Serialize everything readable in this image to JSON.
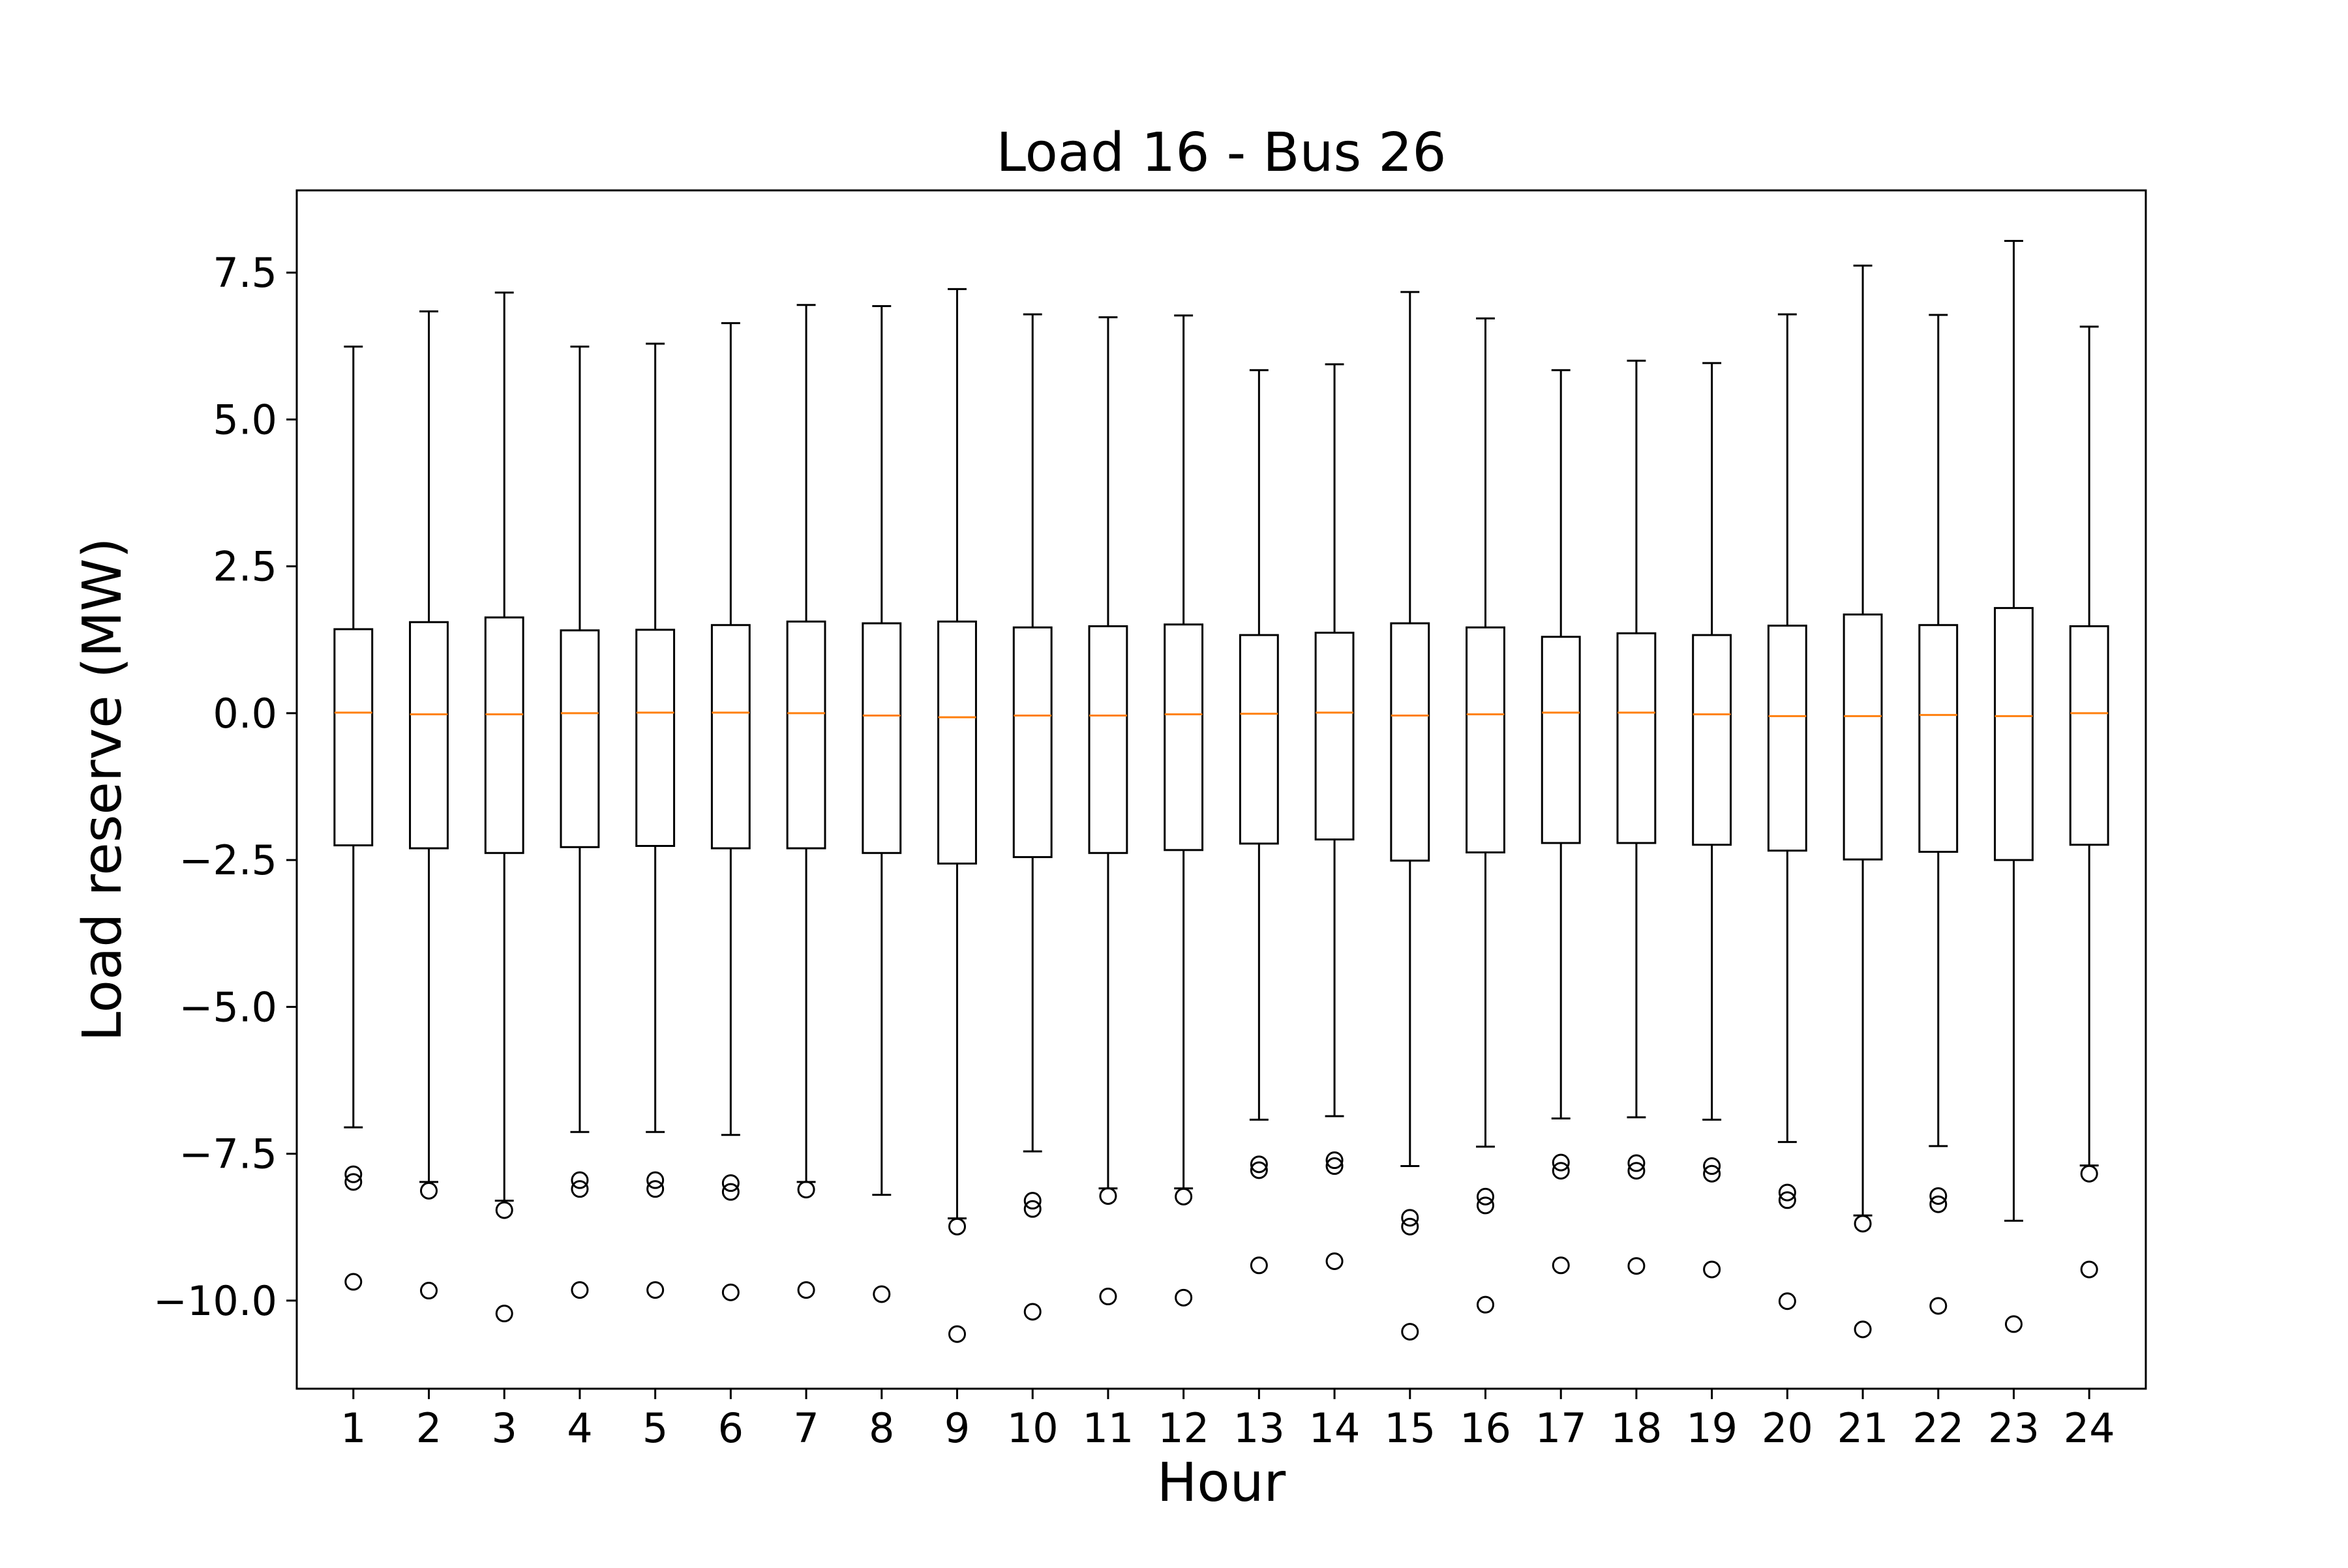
{
  "chart_data": {
    "type": "boxplot",
    "title": "Load 16 - Bus 26",
    "xlabel": "Hour",
    "ylabel": "Load reserve (MW)",
    "ylim": [
      -11.5,
      8.9
    ],
    "y_ticks": [
      7.5,
      5.0,
      2.5,
      0.0,
      -2.5,
      -5.0,
      -7.5,
      -10.0
    ],
    "y_tick_labels": [
      "7.5",
      "5.0",
      "2.5",
      "0.0",
      "−2.5",
      "−5.0",
      "−7.5",
      "−10.0"
    ],
    "categories": [
      "1",
      "2",
      "3",
      "4",
      "5",
      "6",
      "7",
      "8",
      "9",
      "10",
      "11",
      "12",
      "13",
      "14",
      "15",
      "16",
      "17",
      "18",
      "19",
      "20",
      "21",
      "22",
      "23",
      "24"
    ],
    "box_color": "#000000",
    "median_color": "#ff7f0e",
    "grid": false,
    "boxes": [
      {
        "hour": "1",
        "whisker_low": -7.05,
        "q1": -2.25,
        "median": 0.01,
        "q3": 1.43,
        "whisker_high": 6.24,
        "outliers": [
          -7.85,
          -7.98,
          -9.68
        ]
      },
      {
        "hour": "2",
        "whisker_low": -7.98,
        "q1": -2.3,
        "median": -0.02,
        "q3": 1.55,
        "whisker_high": 6.84,
        "outliers": [
          -8.13,
          -9.83
        ]
      },
      {
        "hour": "3",
        "whisker_low": -8.3,
        "q1": -2.38,
        "median": -0.02,
        "q3": 1.63,
        "whisker_high": 7.16,
        "outliers": [
          -8.46,
          -10.22
        ]
      },
      {
        "hour": "4",
        "whisker_low": -7.13,
        "q1": -2.28,
        "median": 0.0,
        "q3": 1.41,
        "whisker_high": 6.24,
        "outliers": [
          -7.95,
          -8.1,
          -9.82
        ]
      },
      {
        "hour": "5",
        "whisker_low": -7.13,
        "q1": -2.26,
        "median": 0.01,
        "q3": 1.42,
        "whisker_high": 6.29,
        "outliers": [
          -7.95,
          -8.1,
          -9.82
        ]
      },
      {
        "hour": "6",
        "whisker_low": -7.18,
        "q1": -2.3,
        "median": 0.01,
        "q3": 1.5,
        "whisker_high": 6.64,
        "outliers": [
          -8.0,
          -8.15,
          -9.86
        ]
      },
      {
        "hour": "7",
        "whisker_low": -7.98,
        "q1": -2.3,
        "median": 0.0,
        "q3": 1.56,
        "whisker_high": 6.95,
        "outliers": [
          -8.11,
          -9.82
        ]
      },
      {
        "hour": "8",
        "whisker_low": -8.2,
        "q1": -2.38,
        "median": -0.04,
        "q3": 1.53,
        "whisker_high": 6.93,
        "outliers": [
          -9.89
        ]
      },
      {
        "hour": "9",
        "whisker_low": -8.6,
        "q1": -2.56,
        "median": -0.07,
        "q3": 1.56,
        "whisker_high": 7.22,
        "outliers": [
          -8.74,
          -10.57
        ]
      },
      {
        "hour": "10",
        "whisker_low": -7.46,
        "q1": -2.45,
        "median": -0.04,
        "q3": 1.46,
        "whisker_high": 6.79,
        "outliers": [
          -8.3,
          -8.44,
          -10.19
        ]
      },
      {
        "hour": "11",
        "whisker_low": -8.09,
        "q1": -2.38,
        "median": -0.04,
        "q3": 1.48,
        "whisker_high": 6.74,
        "outliers": [
          -8.22,
          -9.93
        ]
      },
      {
        "hour": "12",
        "whisker_low": -8.09,
        "q1": -2.33,
        "median": -0.02,
        "q3": 1.51,
        "whisker_high": 6.77,
        "outliers": [
          -8.23,
          -9.95
        ]
      },
      {
        "hour": "13",
        "whisker_low": -6.92,
        "q1": -2.22,
        "median": -0.01,
        "q3": 1.33,
        "whisker_high": 5.84,
        "outliers": [
          -7.68,
          -7.78,
          -9.4
        ]
      },
      {
        "hour": "14",
        "whisker_low": -6.86,
        "q1": -2.15,
        "median": 0.01,
        "q3": 1.37,
        "whisker_high": 5.94,
        "outliers": [
          -7.61,
          -7.71,
          -9.33
        ]
      },
      {
        "hour": "15",
        "whisker_low": -7.71,
        "q1": -2.51,
        "median": -0.04,
        "q3": 1.53,
        "whisker_high": 7.17,
        "outliers": [
          -8.59,
          -8.74,
          -10.53
        ]
      },
      {
        "hour": "16",
        "whisker_low": -7.38,
        "q1": -2.37,
        "median": -0.02,
        "q3": 1.46,
        "whisker_high": 6.72,
        "outliers": [
          -8.23,
          -8.38,
          -10.07
        ]
      },
      {
        "hour": "17",
        "whisker_low": -6.9,
        "q1": -2.21,
        "median": 0.01,
        "q3": 1.3,
        "whisker_high": 5.84,
        "outliers": [
          -7.65,
          -7.79,
          -9.4
        ]
      },
      {
        "hour": "18",
        "whisker_low": -6.88,
        "q1": -2.21,
        "median": 0.01,
        "q3": 1.36,
        "whisker_high": 6.0,
        "outliers": [
          -7.66,
          -7.79,
          -9.41
        ]
      },
      {
        "hour": "19",
        "whisker_low": -6.92,
        "q1": -2.24,
        "median": -0.02,
        "q3": 1.33,
        "whisker_high": 5.96,
        "outliers": [
          -7.71,
          -7.84,
          -9.47
        ]
      },
      {
        "hour": "20",
        "whisker_low": -7.3,
        "q1": -2.34,
        "median": -0.05,
        "q3": 1.49,
        "whisker_high": 6.79,
        "outliers": [
          -8.16,
          -8.29,
          -10.01
        ]
      },
      {
        "hour": "21",
        "whisker_low": -8.55,
        "q1": -2.49,
        "median": -0.05,
        "q3": 1.68,
        "whisker_high": 7.62,
        "outliers": [
          -8.69,
          -10.49
        ]
      },
      {
        "hour": "22",
        "whisker_low": -7.37,
        "q1": -2.36,
        "median": -0.03,
        "q3": 1.5,
        "whisker_high": 6.78,
        "outliers": [
          -8.22,
          -8.36,
          -10.09
        ]
      },
      {
        "hour": "23",
        "whisker_low": -8.64,
        "q1": -2.5,
        "median": -0.05,
        "q3": 1.79,
        "whisker_high": 8.04,
        "outliers": [
          -10.4
        ]
      },
      {
        "hour": "24",
        "whisker_low": -7.7,
        "q1": -2.24,
        "median": 0.0,
        "q3": 1.48,
        "whisker_high": 6.58,
        "outliers": [
          -7.84,
          -9.47
        ]
      }
    ]
  }
}
